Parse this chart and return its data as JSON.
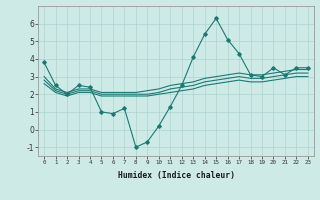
{
  "xlabel": "Humidex (Indice chaleur)",
  "ylabel": "",
  "bg_color": "#ceeae7",
  "grid_color": "#aed4d0",
  "line_color": "#1a7a72",
  "xlim": [
    -0.5,
    23.5
  ],
  "ylim": [
    -1.5,
    7.0
  ],
  "yticks": [
    -1,
    0,
    1,
    2,
    3,
    4,
    5,
    6
  ],
  "xticks": [
    0,
    1,
    2,
    3,
    4,
    5,
    6,
    7,
    8,
    9,
    10,
    11,
    12,
    13,
    14,
    15,
    16,
    17,
    18,
    19,
    20,
    21,
    22,
    23
  ],
  "line1_x": [
    0,
    1,
    2,
    3,
    4,
    5,
    6,
    7,
    8,
    9,
    10,
    11,
    12,
    13,
    14,
    15,
    16,
    17,
    18,
    19,
    20,
    21,
    22,
    23
  ],
  "line1_y": [
    3.8,
    2.5,
    2.0,
    2.5,
    2.4,
    1.0,
    0.9,
    1.2,
    -1.0,
    -0.7,
    0.2,
    1.3,
    2.5,
    4.1,
    5.4,
    6.3,
    5.1,
    4.3,
    3.1,
    3.0,
    3.5,
    3.1,
    3.5,
    3.5
  ],
  "line2_x": [
    0,
    1,
    2,
    3,
    4,
    5,
    6,
    7,
    8,
    9,
    10,
    11,
    12,
    13,
    14,
    15,
    16,
    17,
    18,
    19,
    20,
    21,
    22,
    23
  ],
  "line2_y": [
    3.0,
    2.3,
    2.1,
    2.3,
    2.3,
    2.1,
    2.1,
    2.1,
    2.1,
    2.2,
    2.3,
    2.5,
    2.6,
    2.7,
    2.9,
    3.0,
    3.1,
    3.2,
    3.1,
    3.1,
    3.2,
    3.3,
    3.4,
    3.4
  ],
  "line3_x": [
    0,
    1,
    2,
    3,
    4,
    5,
    6,
    7,
    8,
    9,
    10,
    11,
    12,
    13,
    14,
    15,
    16,
    17,
    18,
    19,
    20,
    21,
    22,
    23
  ],
  "line3_y": [
    2.8,
    2.2,
    2.0,
    2.2,
    2.2,
    2.0,
    2.0,
    2.0,
    2.0,
    2.0,
    2.1,
    2.3,
    2.4,
    2.5,
    2.7,
    2.8,
    2.9,
    3.0,
    2.9,
    2.9,
    3.0,
    3.1,
    3.2,
    3.2
  ],
  "line4_x": [
    0,
    1,
    2,
    3,
    4,
    5,
    6,
    7,
    8,
    9,
    10,
    11,
    12,
    13,
    14,
    15,
    16,
    17,
    18,
    19,
    20,
    21,
    22,
    23
  ],
  "line4_y": [
    2.6,
    2.1,
    1.9,
    2.1,
    2.1,
    1.9,
    1.9,
    1.9,
    1.9,
    1.9,
    2.0,
    2.1,
    2.2,
    2.3,
    2.5,
    2.6,
    2.7,
    2.8,
    2.7,
    2.7,
    2.8,
    2.9,
    3.0,
    3.0
  ]
}
